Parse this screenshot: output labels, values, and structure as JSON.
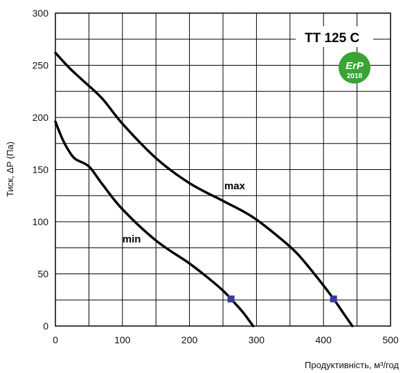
{
  "chart_data": {
    "type": "line",
    "title": "",
    "xlabel": "Продуктивність, м³/год",
    "ylabel": "Тиск, ΔP (Па)",
    "xlim": [
      0,
      500
    ],
    "ylim": [
      0,
      300
    ],
    "x_ticks": [
      "0",
      "100",
      "200",
      "300",
      "400",
      "500"
    ],
    "y_ticks": [
      "0",
      "50",
      "100",
      "150",
      "200",
      "250",
      "300"
    ],
    "grid": true,
    "model": "TT 125 C",
    "badge": {
      "text": "ErP",
      "year": "2018"
    },
    "colors": {
      "line": "#000000",
      "grid": "#000000",
      "marker": "#3b3b98",
      "badge": "#3aa435"
    },
    "series": [
      {
        "name": "max",
        "x": [
          0,
          20,
          40,
          70,
          100,
          150,
          200,
          250,
          280,
          300,
          330,
          360,
          390,
          415,
          430,
          443
        ],
        "y": [
          262,
          248,
          236,
          218,
          194,
          161,
          137,
          120,
          110,
          102,
          87,
          70,
          47,
          26,
          12,
          0
        ],
        "marker": {
          "x": 415,
          "y": 26
        }
      },
      {
        "name": "min",
        "x": [
          0,
          10,
          20,
          30,
          50,
          70,
          100,
          150,
          200,
          230,
          250,
          262,
          280,
          295
        ],
        "y": [
          196,
          180,
          168,
          160,
          153,
          136,
          112,
          82,
          60,
          45,
          34,
          26,
          13,
          0
        ],
        "marker": {
          "x": 262,
          "y": 26
        }
      }
    ]
  }
}
